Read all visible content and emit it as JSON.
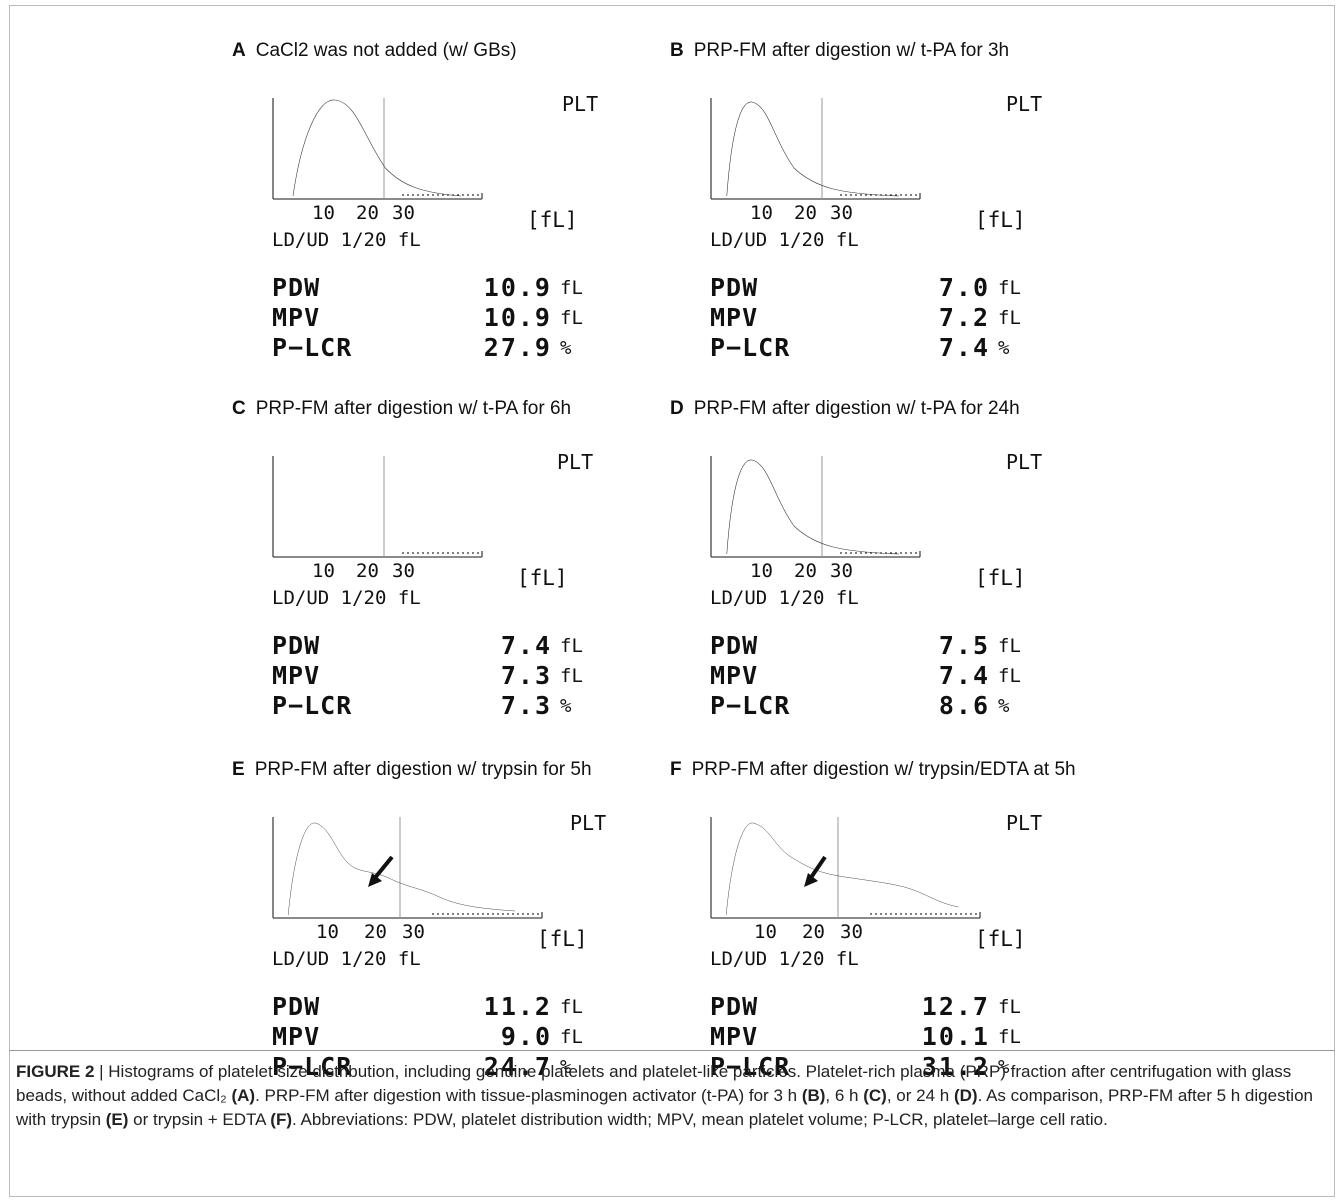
{
  "panels": [
    {
      "letter": "A",
      "title": "CaCl2 was not added (w/  GBs)",
      "plt": "PLT",
      "unit": "[fL]",
      "ticks": [
        "10",
        "20",
        "30"
      ],
      "scale": "LD/UD  1/20 fL",
      "params": [
        {
          "name": "PDW",
          "value": "10.9",
          "unit": "fL"
        },
        {
          "name": "MPV",
          "value": "10.9",
          "unit": "fL"
        },
        {
          "name": "P−LCR",
          "value": "27.9",
          "unit": "%"
        }
      ]
    },
    {
      "letter": "B",
      "title": "PRP-FM  after digestion w/  t-PA for 3h",
      "plt": "PLT",
      "unit": "[fL]",
      "ticks": [
        "10",
        "20",
        "30"
      ],
      "scale": "LD/UD  1/20 fL",
      "params": [
        {
          "name": "PDW",
          "value": "7.0",
          "unit": "fL"
        },
        {
          "name": "MPV",
          "value": "7.2",
          "unit": "fL"
        },
        {
          "name": "P−LCR",
          "value": "7.4",
          "unit": "%"
        }
      ]
    },
    {
      "letter": "C",
      "title": "PRP-FM  after digestion w/  t-PA for 6h",
      "plt": "PLT",
      "unit": "[fL]",
      "ticks": [
        "10",
        "20",
        "30"
      ],
      "scale": "LD/UD  1/20 fL",
      "params": [
        {
          "name": "PDW",
          "value": "7.4",
          "unit": "fL"
        },
        {
          "name": "MPV",
          "value": "7.3",
          "unit": "fL"
        },
        {
          "name": "P−LCR",
          "value": "7.3",
          "unit": "%"
        }
      ]
    },
    {
      "letter": "D",
      "title": "PRP-FM  after digestion w/  t-PA for 24h",
      "plt": "PLT",
      "unit": "[fL]",
      "ticks": [
        "10",
        "20",
        "30"
      ],
      "scale": "LD/UD  1/20 fL",
      "params": [
        {
          "name": "PDW",
          "value": "7.5",
          "unit": "fL"
        },
        {
          "name": "MPV",
          "value": "7.4",
          "unit": "fL"
        },
        {
          "name": "P−LCR",
          "value": "8.6",
          "unit": "%"
        }
      ]
    },
    {
      "letter": "E",
      "title": "PRP-FM  after digestion w/  trypsin for 5h",
      "plt": "PLT",
      "unit": "[fL]",
      "ticks": [
        "10",
        "20",
        "30"
      ],
      "scale": "LD/UD  1/20 fL",
      "params": [
        {
          "name": "PDW",
          "value": "11.2",
          "unit": "fL"
        },
        {
          "name": "MPV",
          "value": "9.0",
          "unit": "fL"
        },
        {
          "name": "P−LCR",
          "value": "24.7",
          "unit": "%"
        }
      ]
    },
    {
      "letter": "F",
      "title": "PRP-FM after digestion w/  trypsin/EDTA at 5h",
      "plt": "PLT",
      "unit": "[fL]",
      "ticks": [
        "10",
        "20",
        "30"
      ],
      "scale": "LD/UD  1/20 fL",
      "params": [
        {
          "name": "PDW",
          "value": "12.7",
          "unit": "fL"
        },
        {
          "name": "MPV",
          "value": "10.1",
          "unit": "fL"
        },
        {
          "name": "P−LCR",
          "value": "31.2",
          "unit": "%"
        }
      ]
    }
  ],
  "caption": {
    "label": "FIGURE 2",
    "sep": " | ",
    "parts": [
      {
        "t": "Histograms of platelet size distribution, including genuine platelets and platelet-like particles. Platelet-rich plasma (PRP) fraction after centrifugation with glass beads, without added CaCl₂ "
      },
      {
        "b": "(A)"
      },
      {
        "t": ". PRP-FM after digestion with tissue-plasminogen activator (t-PA) for 3 h "
      },
      {
        "b": "(B)"
      },
      {
        "t": ", 6 h "
      },
      {
        "b": "(C)"
      },
      {
        "t": ", or 24 h "
      },
      {
        "b": "(D)"
      },
      {
        "t": ". As comparison, PRP-FM after 5 h digestion with trypsin "
      },
      {
        "b": "(E)"
      },
      {
        "t": " or trypsin + EDTA "
      },
      {
        "b": "(F)"
      },
      {
        "t": ". Abbreviations: PDW, platelet distribution width; MPV, mean platelet volume; P-LCR, platelet–large cell ratio."
      }
    ]
  }
}
